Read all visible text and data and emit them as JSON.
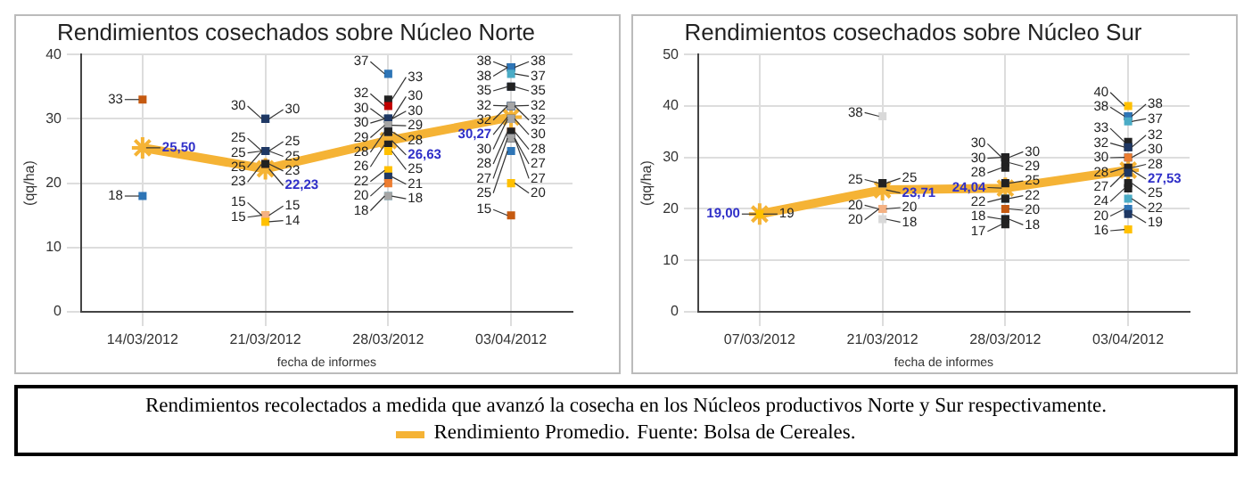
{
  "chart_data": [
    {
      "type": "line",
      "title": "Rendimientos cosechados sobre Núcleo Norte",
      "xlabel": "fecha de informes",
      "ylabel": "(qq/ha)",
      "categories": [
        "14/03/2012",
        "21/03/2012",
        "28/03/2012",
        "03/04/2012"
      ],
      "ylim": [
        0,
        40
      ],
      "yticks": [
        0,
        10,
        20,
        30,
        40
      ],
      "grid": true,
      "legend": "bottom",
      "data_labels": true,
      "annotations": [
        "Rendimientos recolectados a medida que avanzó la cosecha en los Núcleos productivos Norte y Sur respectivamente.",
        "Fuente: Bolsa de Cereales."
      ],
      "series": [
        {
          "name": "Rendimiento Promedio.",
          "color": "#f5b335",
          "marker": "cross",
          "values": [
            25.5,
            22.23,
            26.63,
            30.27
          ],
          "value_labels": [
            "25,50",
            "22,23",
            "26,63",
            "30,27"
          ]
        },
        {
          "type": "scatter",
          "marker": "square",
          "x": [
            "14/03/2012",
            "14/03/2012"
          ],
          "values": [
            33,
            18
          ],
          "colors": [
            "#c55a11",
            "#2e75b6"
          ]
        },
        {
          "type": "scatter",
          "marker": "square",
          "x": [
            "21/03/2012",
            "21/03/2012",
            "21/03/2012",
            "21/03/2012",
            "21/03/2012",
            "21/03/2012",
            "21/03/2012",
            "21/03/2012",
            "21/03/2012",
            "21/03/2012",
            "21/03/2012",
            "21/03/2012",
            "21/03/2012"
          ],
          "values": [
            30,
            30,
            25,
            25,
            25,
            25,
            25,
            23,
            23,
            15,
            15,
            15,
            14
          ],
          "colors": [
            "#2e75b6",
            "#1f3864",
            "#4bacc6",
            "#1f3864",
            "#2e75b6",
            "#a5a5a5",
            "#1f3864",
            "#ed7d31",
            "#222222",
            "#f4b183",
            "#ffc000",
            "#f4b183",
            "#ffc000"
          ]
        },
        {
          "type": "scatter",
          "marker": "square",
          "x": [
            "28/03/2012",
            "28/03/2012",
            "28/03/2012",
            "28/03/2012",
            "28/03/2012",
            "28/03/2012",
            "28/03/2012",
            "28/03/2012",
            "28/03/2012",
            "28/03/2012",
            "28/03/2012",
            "28/03/2012",
            "28/03/2012",
            "28/03/2012",
            "28/03/2012",
            "28/03/2012",
            "28/03/2012",
            "28/03/2012"
          ],
          "values": [
            37,
            33,
            32,
            30,
            30,
            30,
            30,
            29,
            29,
            28,
            28,
            26,
            25,
            22,
            21,
            20,
            18,
            18
          ],
          "colors": [
            "#2e75b6",
            "#222222",
            "#c00000",
            "#1f3864",
            "#222222",
            "#2e75b6",
            "#1f3864",
            "#222222",
            "#a5a5a5",
            "#1f3864",
            "#222222",
            "#222222",
            "#ffc000",
            "#ffc000",
            "#1f3864",
            "#ed7d31",
            "#4bacc6",
            "#a5a5a5"
          ]
        },
        {
          "type": "scatter",
          "marker": "square",
          "x": [
            "03/04/2012",
            "03/04/2012",
            "03/04/2012",
            "03/04/2012",
            "03/04/2012",
            "03/04/2012",
            "03/04/2012",
            "03/04/2012",
            "03/04/2012",
            "03/04/2012",
            "03/04/2012",
            "03/04/2012",
            "03/04/2012",
            "03/04/2012",
            "03/04/2012",
            "03/04/2012",
            "03/04/2012",
            "03/04/2012",
            "03/04/2012",
            "03/04/2012"
          ],
          "values": [
            38,
            38,
            38,
            37,
            35,
            35,
            32,
            32,
            32,
            32,
            30,
            30,
            28,
            28,
            27,
            27,
            27,
            25,
            20,
            15
          ],
          "colors": [
            "#1f3864",
            "#222222",
            "#2e75b6",
            "#4bacc6",
            "#1f3864",
            "#222222",
            "#222222",
            "#2e75b6",
            "#1f3864",
            "#a5a5a5",
            "#222222",
            "#a5a5a5",
            "#ed7d31",
            "#222222",
            "#1f3864",
            "#222222",
            "#a5a5a5",
            "#2e75b6",
            "#ffc000",
            "#c55a11"
          ]
        }
      ]
    },
    {
      "type": "line",
      "title": "Rendimientos cosechados sobre Núcleo Sur",
      "xlabel": "fecha de informes",
      "ylabel": "(qq/ha)",
      "categories": [
        "07/03/2012",
        "21/03/2012",
        "28/03/2012",
        "03/04/2012"
      ],
      "ylim": [
        0,
        50
      ],
      "yticks": [
        0,
        10,
        20,
        30,
        40,
        50
      ],
      "grid": true,
      "data_labels": true,
      "series": [
        {
          "color": "#f5b335",
          "marker": "cross",
          "values": [
            19,
            23.71,
            24.04,
            27.53
          ],
          "value_labels": [
            "19,00",
            "23,71",
            "24,04",
            "27,53"
          ]
        },
        {
          "type": "scatter",
          "marker": "square",
          "x": [
            "07/03/2012"
          ],
          "values": [
            19
          ],
          "colors": [
            "#ffc000"
          ]
        },
        {
          "type": "scatter",
          "marker": "square",
          "x": [
            "21/03/2012",
            "21/03/2012",
            "21/03/2012",
            "21/03/2012",
            "21/03/2012",
            "21/03/2012",
            "21/03/2012"
          ],
          "values": [
            38,
            25,
            25,
            20,
            20,
            20,
            18
          ],
          "colors": [
            "#d9d9d9",
            "#2e75b6",
            "#222222",
            "#222222",
            "#ed7d31",
            "#f4b183",
            "#d9d9d9"
          ]
        },
        {
          "type": "scatter",
          "marker": "square",
          "x": [
            "28/03/2012",
            "28/03/2012",
            "28/03/2012",
            "28/03/2012",
            "28/03/2012",
            "28/03/2012",
            "28/03/2012",
            "28/03/2012",
            "28/03/2012",
            "28/03/2012",
            "28/03/2012",
            "28/03/2012"
          ],
          "values": [
            30,
            30,
            30,
            29,
            28,
            25,
            22,
            22,
            20,
            18,
            18,
            17
          ],
          "colors": [
            "#1f3864",
            "#222222",
            "#222222",
            "#222222",
            "#222222",
            "#222222",
            "#4bacc6",
            "#222222",
            "#c55a11",
            "#2e75b6",
            "#222222",
            "#222222"
          ]
        },
        {
          "type": "scatter",
          "marker": "square",
          "x": [
            "03/04/2012",
            "03/04/2012",
            "03/04/2012",
            "03/04/2012",
            "03/04/2012",
            "03/04/2012",
            "03/04/2012",
            "03/04/2012",
            "03/04/2012",
            "03/04/2012",
            "03/04/2012",
            "03/04/2012",
            "03/04/2012",
            "03/04/2012",
            "03/04/2012",
            "03/04/2012",
            "03/04/2012",
            "03/04/2012"
          ],
          "values": [
            40,
            38,
            38,
            37,
            33,
            32,
            32,
            30,
            30,
            28,
            28,
            27,
            25,
            24,
            22,
            20,
            19,
            16
          ],
          "colors": [
            "#ffc000",
            "#222222",
            "#2e75b6",
            "#4bacc6",
            "#222222",
            "#222222",
            "#1f3864",
            "#2e75b6",
            "#ed7d31",
            "#c55a11",
            "#222222",
            "#1f3864",
            "#222222",
            "#222222",
            "#4bacc6",
            "#2e75b6",
            "#1f3864",
            "#ffc000"
          ]
        }
      ]
    }
  ]
}
